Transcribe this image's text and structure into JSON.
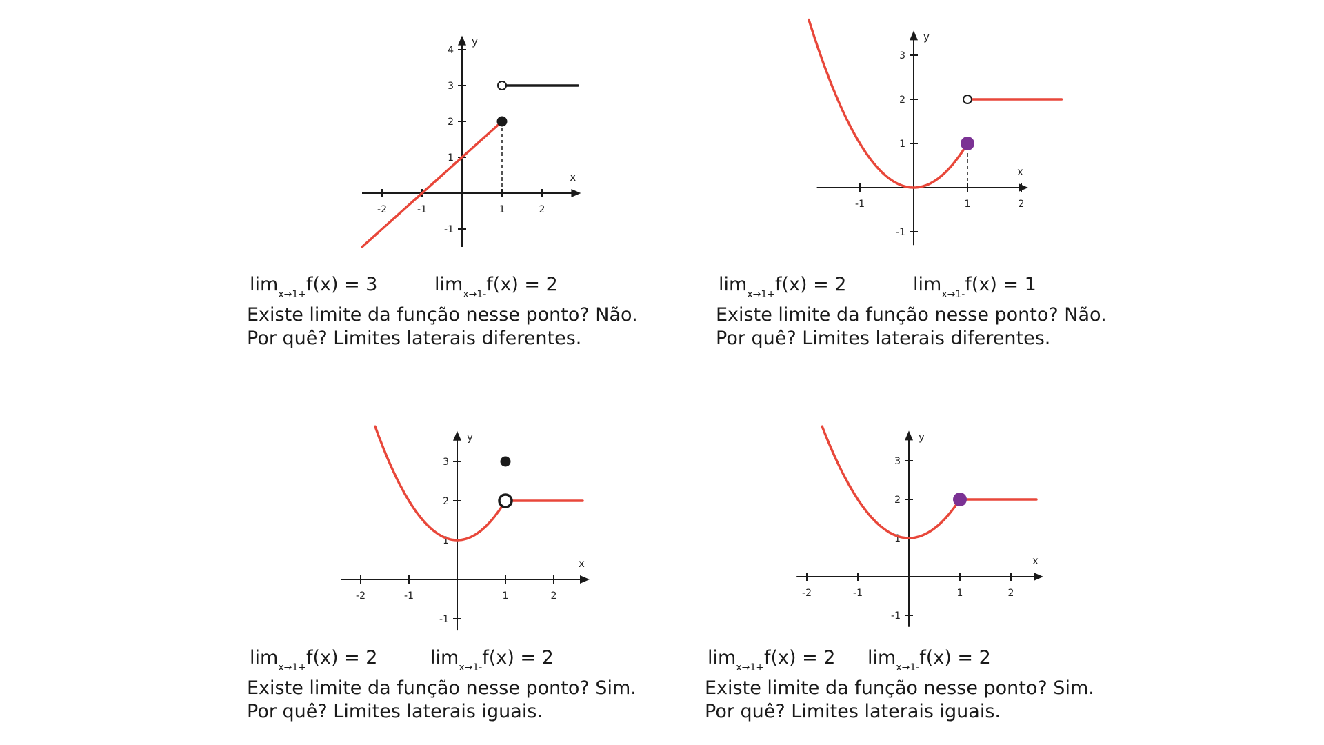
{
  "colors": {
    "curve": "#e8473a",
    "black_segment": "#1a1a1a",
    "highlight_point": "#7b3294",
    "axis": "#1a1a1a"
  },
  "chart_data": [
    {
      "type": "line",
      "xlabel": "x",
      "ylabel": "y",
      "x_ticks": [
        -2,
        -1,
        1,
        2
      ],
      "y_ticks": [
        -1,
        1,
        2,
        3,
        4
      ],
      "xlim": [
        -2.5,
        2.8
      ],
      "ylim": [
        -1.5,
        4.2
      ],
      "series": [
        {
          "kind": "linear",
          "x": [
            -2.5,
            1
          ],
          "y": [
            -1.5,
            2
          ],
          "color": "#e8473a"
        },
        {
          "kind": "linear",
          "x": [
            1,
            2.9
          ],
          "y": [
            3,
            3
          ],
          "color": "#1a1a1a"
        }
      ],
      "points": [
        {
          "x": 1,
          "y": 3,
          "style": "open"
        },
        {
          "x": 1,
          "y": 2,
          "style": "filled",
          "color": "#1a1a1a"
        }
      ],
      "dashed_guide": {
        "x": 1,
        "y": 2
      },
      "caption": {
        "lim_right": {
          "prefix": "lim",
          "sub": "x→1+",
          "expr": "f(x) = 3"
        },
        "lim_left": {
          "prefix": "lim",
          "sub": "x→1-",
          "expr": "f(x) = 2"
        },
        "question": "Existe limite da função nesse ponto? Não.",
        "reason": "Por quê? Limites laterais diferentes."
      }
    },
    {
      "type": "line",
      "xlabel": "x",
      "ylabel": "y",
      "x_ticks": [
        -1,
        1,
        2
      ],
      "y_ticks": [
        -1,
        1,
        2,
        3
      ],
      "xlim": [
        -1.8,
        2.0
      ],
      "ylim": [
        -1.3,
        3.4
      ],
      "series": [
        {
          "kind": "parabola",
          "x": [
            -1.95,
            1
          ],
          "formula": "x^2",
          "color": "#e8473a"
        },
        {
          "kind": "linear",
          "x": [
            1,
            2.75
          ],
          "y": [
            2,
            2
          ],
          "color": "#e8473a"
        }
      ],
      "points": [
        {
          "x": 1,
          "y": 2,
          "style": "open"
        },
        {
          "x": 1,
          "y": 1,
          "style": "filled",
          "color": "#7b3294"
        }
      ],
      "dashed_guide": {
        "x": 1,
        "y": 1
      },
      "caption": {
        "lim_right": {
          "prefix": "lim",
          "sub": "x→1+",
          "expr": "f(x) = 2"
        },
        "lim_left": {
          "prefix": "lim",
          "sub": "x→1-",
          "expr": "f(x) = 1"
        },
        "question": "Existe limite da função nesse ponto? Não.",
        "reason": "Por quê? Limites laterais diferentes."
      }
    },
    {
      "type": "line",
      "xlabel": "x",
      "ylabel": "y",
      "x_ticks": [
        -2,
        -1,
        1,
        2
      ],
      "y_ticks": [
        -1,
        1,
        2,
        3
      ],
      "xlim": [
        -2.4,
        2.6
      ],
      "ylim": [
        -1.3,
        3.6
      ],
      "series": [
        {
          "kind": "parabola",
          "x": [
            -1.7,
            1
          ],
          "formula": "x^2 + 1",
          "color": "#e8473a"
        },
        {
          "kind": "linear",
          "x": [
            1,
            2.6
          ],
          "y": [
            2,
            2
          ],
          "color": "#e8473a"
        }
      ],
      "points": [
        {
          "x": 1,
          "y": 2,
          "style": "open"
        },
        {
          "x": 1,
          "y": 3,
          "style": "filled",
          "color": "#1a1a1a"
        }
      ],
      "caption": {
        "lim_right": {
          "prefix": "lim",
          "sub": "x→1+",
          "expr": "f(x) = 2"
        },
        "lim_left": {
          "prefix": "lim",
          "sub": "x→1-",
          "expr": "f(x) = 2"
        },
        "question": "Existe limite da função nesse ponto? Sim.",
        "reason": "Por quê? Limites laterais iguais."
      }
    },
    {
      "type": "line",
      "xlabel": "x",
      "ylabel": "y",
      "x_ticks": [
        -2,
        -1,
        1,
        2
      ],
      "y_ticks": [
        -1,
        1,
        2,
        3
      ],
      "xlim": [
        -2.2,
        2.5
      ],
      "ylim": [
        -1.3,
        3.6
      ],
      "series": [
        {
          "kind": "parabola",
          "x": [
            -1.7,
            1
          ],
          "formula": "x^2 + 1",
          "color": "#e8473a"
        },
        {
          "kind": "linear",
          "x": [
            1,
            2.5
          ],
          "y": [
            2,
            2
          ],
          "color": "#e8473a"
        }
      ],
      "points": [
        {
          "x": 1,
          "y": 2,
          "style": "filled",
          "color": "#7b3294"
        }
      ],
      "caption": {
        "lim_right": {
          "prefix": "lim",
          "sub": "x→1+",
          "expr": "f(x) = 2"
        },
        "lim_left": {
          "prefix": "lim",
          "sub": "x→1-",
          "expr": "f(x) = 2"
        },
        "question": "Existe limite da função nesse ponto? Sim.",
        "reason": "Por quê? Limites laterais iguais."
      }
    }
  ]
}
